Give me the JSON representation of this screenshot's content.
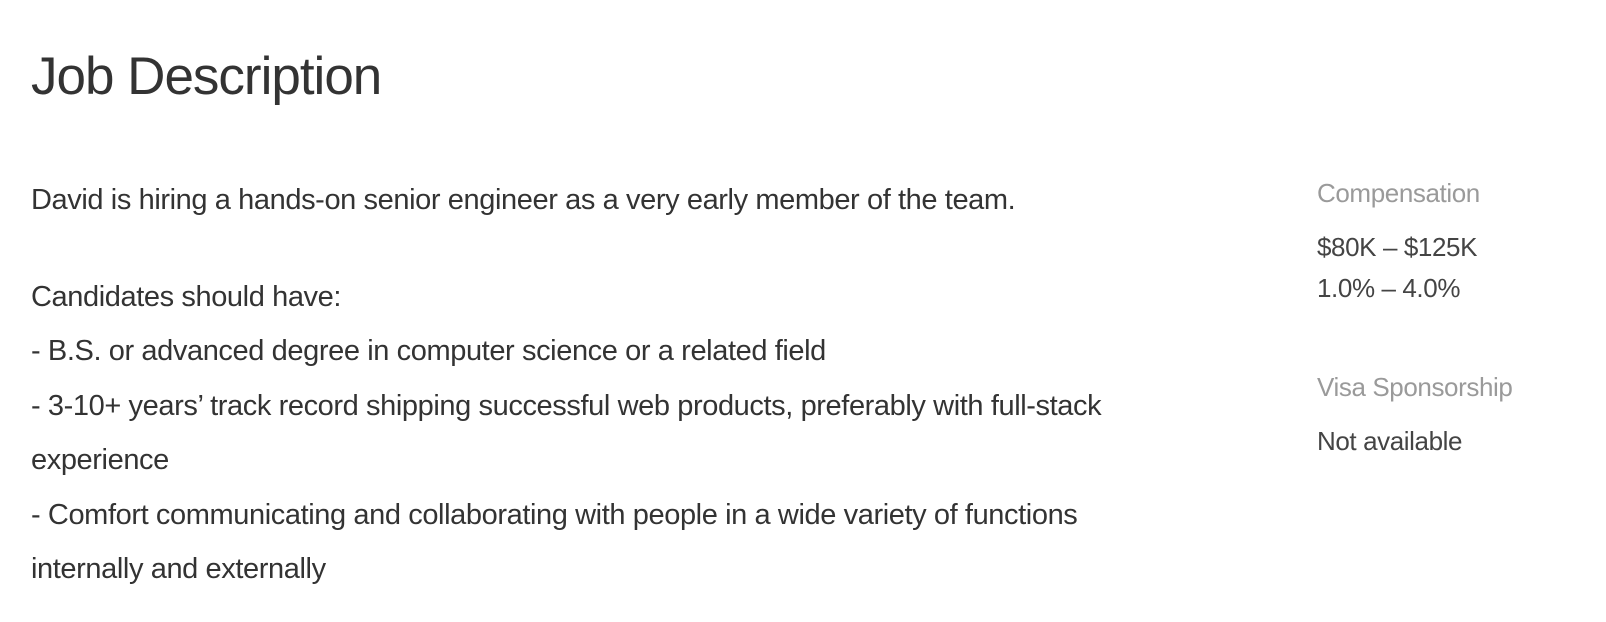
{
  "page": {
    "title": "Job Description"
  },
  "description": {
    "intro": "David is hiring a hands-on senior engineer as a very early member of the team.",
    "requirements_heading": "Candidates should have:",
    "requirements": [
      "- B.S. or advanced degree in computer science or a related field",
      "- 3-10+ years’ track record shipping successful web products, preferably with full-stack",
      "experience",
      "- Comfort communicating and collaborating with people in a wide variety of functions",
      "internally and externally"
    ]
  },
  "sidebar": {
    "compensation": {
      "label": "Compensation",
      "salary": "$80K – $125K",
      "equity": "1.0% – 4.0%"
    },
    "visa": {
      "label": "Visa Sponsorship",
      "value": "Not available"
    }
  }
}
